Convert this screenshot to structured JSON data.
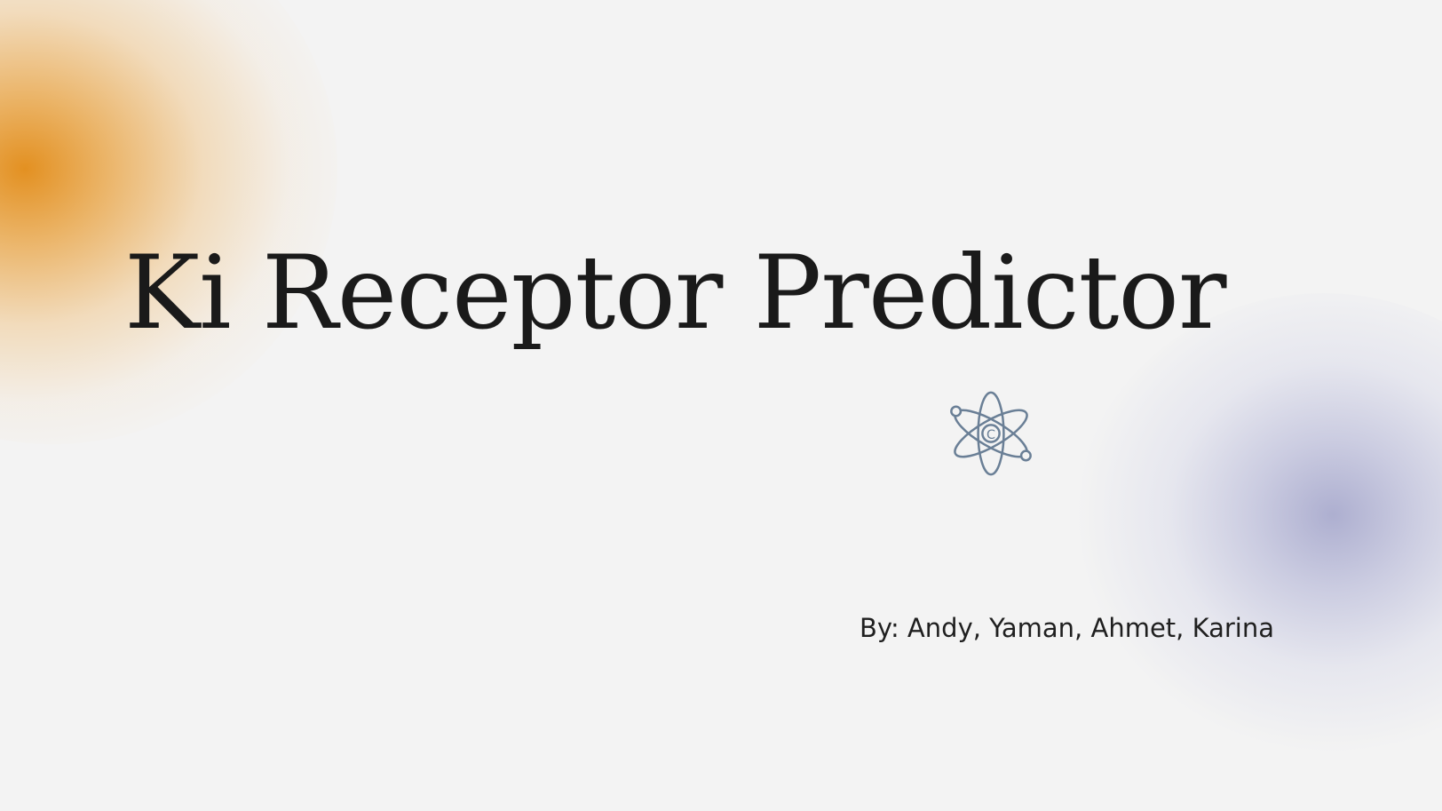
{
  "slide": {
    "title": "Ki Receptor Predictor",
    "byline": "By: Andy, Yaman, Ahmet, Karina",
    "icon": "atom-icon",
    "nucleus_label": "C"
  },
  "colors": {
    "background": "#f3f3f3",
    "accent_orange": "#e28b16",
    "accent_purple": "#9698c4",
    "icon": "#6a7f96",
    "text": "#1a1a1a"
  }
}
